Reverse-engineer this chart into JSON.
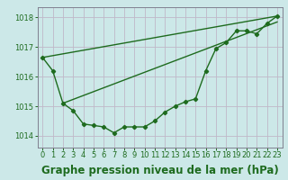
{
  "bg_color": "#cce8e8",
  "grid_color": "#c8c8d8",
  "line_color": "#1e6b1e",
  "title": "Graphe pression niveau de la mer (hPa)",
  "xlim": [
    -0.5,
    23.5
  ],
  "ylim": [
    1013.6,
    1018.35
  ],
  "yticks": [
    1014,
    1015,
    1016,
    1017,
    1018
  ],
  "xticks": [
    0,
    1,
    2,
    3,
    4,
    5,
    6,
    7,
    8,
    9,
    10,
    11,
    12,
    13,
    14,
    15,
    16,
    17,
    18,
    19,
    20,
    21,
    22,
    23
  ],
  "main_x": [
    0,
    1,
    2,
    3,
    4,
    5,
    6,
    7,
    8,
    9,
    10,
    11,
    12,
    13,
    14,
    15,
    16,
    17,
    18,
    19,
    20,
    21,
    22,
    23
  ],
  "main_y": [
    1016.65,
    1016.2,
    1015.1,
    1014.85,
    1014.4,
    1014.35,
    1014.3,
    1014.1,
    1014.3,
    1014.3,
    1014.3,
    1014.5,
    1014.8,
    1015.0,
    1015.15,
    1015.25,
    1016.2,
    1016.95,
    1017.15,
    1017.55,
    1017.55,
    1017.45,
    1017.8,
    1018.05
  ],
  "line2_x": [
    0,
    23
  ],
  "line2_y": [
    1016.65,
    1018.05
  ],
  "line3_x": [
    2,
    23
  ],
  "line3_y": [
    1015.1,
    1017.85
  ],
  "line_width": 1.0,
  "marker": "D",
  "marker_size": 2.2,
  "title_fontsize": 8.5,
  "tick_fontsize": 6.0
}
